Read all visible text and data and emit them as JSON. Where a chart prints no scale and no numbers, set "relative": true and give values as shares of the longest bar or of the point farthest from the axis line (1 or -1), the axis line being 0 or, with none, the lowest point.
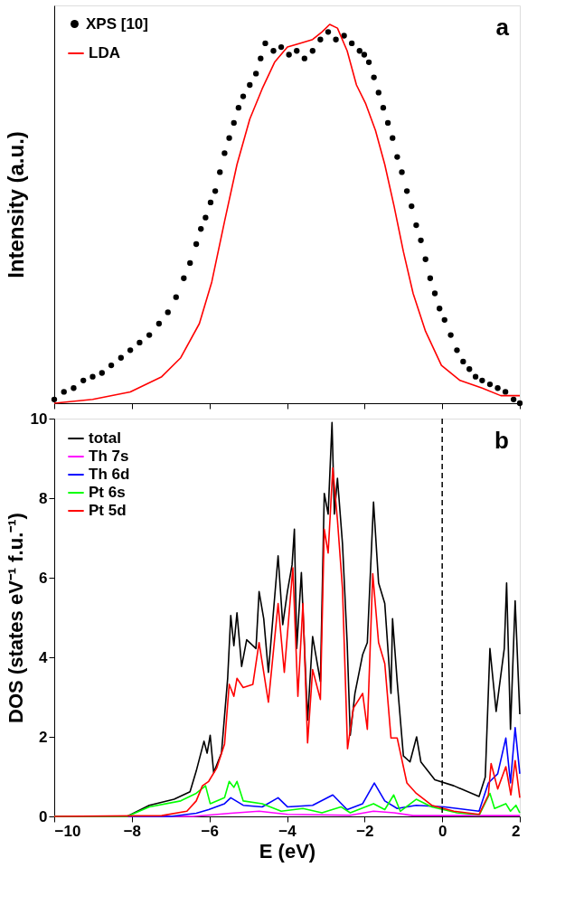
{
  "chart_data": [
    {
      "type": "line",
      "relative": true,
      "ylabel": "Intensity (a.u.)",
      "xlim": [
        -10,
        2
      ],
      "xticks": [
        -10,
        -8,
        -6,
        -4,
        -2,
        0,
        2
      ],
      "tick_labels": false,
      "grid": false,
      "legend": "top left",
      "annotations": [
        "a"
      ],
      "series": [
        {
          "name": "XPS [10]",
          "type": "scatter",
          "marker": "circle",
          "color": "#000000",
          "x": [
            -10,
            -9.75,
            -9.5,
            -9.25,
            -9.01,
            -8.77,
            -8.53,
            -8.28,
            -8.04,
            -7.8,
            -7.55,
            -7.3,
            -7.07,
            -6.86,
            -6.66,
            -6.5,
            -6.34,
            -6.22,
            -6.1,
            -5.97,
            -5.85,
            -5.73,
            -5.61,
            -5.49,
            -5.37,
            -5.25,
            -5.13,
            -4.96,
            -4.8,
            -4.68,
            -4.56,
            -4.35,
            -4.15,
            -3.95,
            -3.75,
            -3.55,
            -3.34,
            -3.14,
            -2.94,
            -2.74,
            -2.53,
            -2.33,
            -2.13,
            -2.01,
            -1.89,
            -1.76,
            -1.64,
            -1.52,
            -1.4,
            -1.28,
            -1.16,
            -1.04,
            -0.91,
            -0.79,
            -0.67,
            -0.55,
            -0.43,
            -0.31,
            -0.19,
            -0.07,
            0.06,
            0.22,
            0.38,
            0.54,
            0.7,
            0.86,
            1.03,
            1.23,
            1.43,
            1.63,
            1.84,
            2.0
          ],
          "values": [
            0.01,
            0.03,
            0.04,
            0.06,
            0.07,
            0.08,
            0.1,
            0.12,
            0.14,
            0.16,
            0.18,
            0.21,
            0.24,
            0.28,
            0.33,
            0.37,
            0.42,
            0.46,
            0.49,
            0.53,
            0.56,
            0.61,
            0.66,
            0.7,
            0.74,
            0.78,
            0.81,
            0.84,
            0.87,
            0.91,
            0.95,
            0.93,
            0.94,
            0.92,
            0.93,
            0.91,
            0.93,
            0.96,
            0.98,
            0.96,
            0.97,
            0.95,
            0.93,
            0.92,
            0.9,
            0.86,
            0.82,
            0.78,
            0.74,
            0.7,
            0.65,
            0.61,
            0.56,
            0.52,
            0.47,
            0.43,
            0.38,
            0.33,
            0.29,
            0.25,
            0.22,
            0.18,
            0.14,
            0.11,
            0.09,
            0.07,
            0.06,
            0.05,
            0.04,
            0.03,
            0.01,
            0.0
          ]
        },
        {
          "name": "LDA",
          "type": "line",
          "color": "#ff0000",
          "x": [
            -10,
            -9.01,
            -8.04,
            -7.23,
            -6.74,
            -6.26,
            -5.94,
            -5.61,
            -5.29,
            -4.96,
            -4.64,
            -4.32,
            -3.99,
            -3.67,
            -3.34,
            -3.1,
            -2.9,
            -2.7,
            -2.45,
            -2.21,
            -1.97,
            -1.72,
            -1.48,
            -1.24,
            -1.0,
            -0.75,
            -0.43,
            -0.02,
            0.46,
            1.03,
            1.51,
            2.0
          ],
          "values": [
            0.0,
            0.01,
            0.03,
            0.07,
            0.12,
            0.21,
            0.32,
            0.48,
            0.63,
            0.75,
            0.83,
            0.9,
            0.94,
            0.95,
            0.96,
            0.98,
            1.0,
            0.99,
            0.93,
            0.84,
            0.79,
            0.72,
            0.63,
            0.52,
            0.4,
            0.29,
            0.19,
            0.1,
            0.06,
            0.04,
            0.02,
            0.02
          ]
        }
      ]
    },
    {
      "type": "line",
      "ylabel": "DOS (states eV⁻¹ f.u.⁻¹)",
      "xlabel": "E (eV)",
      "xlim": [
        -10,
        2
      ],
      "xticks": [
        -10,
        -8,
        -6,
        -4,
        -2,
        0,
        2
      ],
      "ylim": [
        0,
        10
      ],
      "yticks": [
        0,
        2,
        4,
        6,
        8,
        10
      ],
      "grid": false,
      "legend": "top left",
      "annotations": [
        "b"
      ],
      "ref_lines": [
        {
          "axis": "x",
          "value": 0,
          "line_style": "dashed",
          "color": "#000000"
        }
      ],
      "series": [
        {
          "name": "total",
          "color": "#000000",
          "x": [
            -10,
            -8.12,
            -7.55,
            -6.91,
            -6.5,
            -6.34,
            -6.14,
            -6.06,
            -5.98,
            -5.89,
            -5.69,
            -5.53,
            -5.45,
            -5.37,
            -5.29,
            -5.17,
            -5.04,
            -4.8,
            -4.72,
            -4.6,
            -4.48,
            -4.23,
            -4.11,
            -3.99,
            -3.87,
            -3.81,
            -3.75,
            -3.63,
            -3.47,
            -3.34,
            -3.14,
            -3.04,
            -2.94,
            -2.84,
            -2.78,
            -2.7,
            -2.57,
            -2.45,
            -2.37,
            -2.25,
            -2.05,
            -1.93,
            -1.77,
            -1.64,
            -1.48,
            -1.32,
            -1.28,
            -1.16,
            -1.0,
            -0.83,
            -0.66,
            -0.55,
            -0.19,
            0.3,
            0.95,
            1.11,
            1.23,
            1.39,
            1.6,
            1.66,
            1.76,
            1.88,
            2.0
          ],
          "values": [
            0,
            0,
            0.28,
            0.43,
            0.62,
            1.14,
            1.89,
            1.59,
            2.04,
            1.1,
            1.59,
            3.47,
            5.05,
            4.29,
            5.12,
            3.77,
            4.44,
            4.22,
            5.65,
            4.97,
            3.62,
            6.55,
            4.82,
            5.65,
            6.32,
            7.22,
            4.22,
            6.13,
            2.42,
            4.52,
            3.39,
            8.12,
            7.6,
            9.9,
            7.6,
            8.5,
            6.85,
            4.37,
            2.04,
            3.09,
            4.07,
            4.37,
            7.9,
            5.87,
            5.35,
            3.09,
            4.97,
            3.39,
            1.52,
            1.37,
            2.0,
            1.37,
            0.92,
            0.77,
            0.5,
            0.99,
            4.22,
            2.64,
            4.22,
            5.87,
            2.19,
            5.42,
            2.57
          ]
        },
        {
          "name": "Th 7s",
          "color": "#ff00ff",
          "x": [
            -10,
            -6.42,
            -5.45,
            -4.72,
            -3.99,
            -2.37,
            -1.77,
            -1.24,
            -0.75,
            2.0
          ],
          "values": [
            0,
            0,
            0.08,
            0.13,
            0.05,
            0.03,
            0.13,
            0.09,
            0.02,
            0.02
          ]
        },
        {
          "name": "Th 6d",
          "color": "#0000ff",
          "x": [
            -10,
            -6.99,
            -6.34,
            -6.02,
            -5.61,
            -5.45,
            -5.13,
            -4.64,
            -4.23,
            -3.99,
            -3.34,
            -2.82,
            -2.45,
            -2.05,
            -1.75,
            -1.48,
            -1.16,
            -0.67,
            0.06,
            0.95,
            1.19,
            1.43,
            1.64,
            1.76,
            1.88,
            2.0
          ],
          "values": [
            0,
            0,
            0.08,
            0.17,
            0.32,
            0.47,
            0.28,
            0.24,
            0.47,
            0.24,
            0.28,
            0.54,
            0.17,
            0.32,
            0.84,
            0.39,
            0.2,
            0.28,
            0.24,
            0.13,
            0.84,
            1.07,
            1.97,
            0.84,
            2.23,
            1.07
          ]
        },
        {
          "name": "Pt 6s",
          "color": "#00ff00",
          "x": [
            -10,
            -8.12,
            -7.55,
            -6.74,
            -6.34,
            -6.1,
            -5.98,
            -5.61,
            -5.49,
            -5.37,
            -5.29,
            -5.13,
            -4.64,
            -4.15,
            -3.59,
            -3.1,
            -2.61,
            -2.37,
            -1.77,
            -1.48,
            -1.25,
            -1.08,
            -0.67,
            -0.27,
            0.38,
            0.96,
            1.23,
            1.35,
            1.64,
            1.76,
            1.9,
            2.0
          ],
          "values": [
            0,
            0,
            0.24,
            0.39,
            0.58,
            0.77,
            0.32,
            0.47,
            0.88,
            0.73,
            0.88,
            0.39,
            0.32,
            0.13,
            0.2,
            0.09,
            0.24,
            0.09,
            0.32,
            0.17,
            0.54,
            0.13,
            0.43,
            0.24,
            0.09,
            0.04,
            0.58,
            0.2,
            0.32,
            0.13,
            0.28,
            0.09
          ]
        },
        {
          "name": "Pt 5d",
          "color": "#ff0000",
          "x": [
            -10,
            -7.23,
            -6.58,
            -6.34,
            -6.18,
            -6.02,
            -5.81,
            -5.61,
            -5.49,
            -5.37,
            -5.29,
            -5.13,
            -4.88,
            -4.72,
            -4.48,
            -4.23,
            -4.07,
            -3.85,
            -3.72,
            -3.59,
            -3.47,
            -3.34,
            -3.14,
            -3.04,
            -2.94,
            -2.82,
            -2.7,
            -2.57,
            -2.44,
            -2.29,
            -2.05,
            -1.93,
            -1.79,
            -1.64,
            -1.48,
            -1.32,
            -1.16,
            -0.91,
            -0.67,
            -0.27,
            0.3,
            0.95,
            1.19,
            1.26,
            1.43,
            1.64,
            1.77,
            1.88,
            2.0
          ],
          "values": [
            0,
            0.02,
            0.13,
            0.39,
            0.77,
            0.88,
            1.22,
            1.82,
            3.32,
            3.02,
            3.47,
            3.24,
            3.32,
            4.37,
            2.87,
            5.35,
            3.62,
            6.25,
            3.02,
            5.35,
            1.85,
            3.69,
            2.94,
            7.22,
            6.62,
            8.76,
            7.45,
            5.72,
            1.7,
            2.72,
            3.09,
            2.19,
            6.1,
            4.37,
            3.84,
            1.97,
            1.97,
            0.84,
            0.58,
            0.28,
            0.13,
            0.05,
            0.54,
            1.33,
            0.69,
            1.25,
            0.54,
            1.4,
            0.47
          ]
        }
      ]
    }
  ]
}
